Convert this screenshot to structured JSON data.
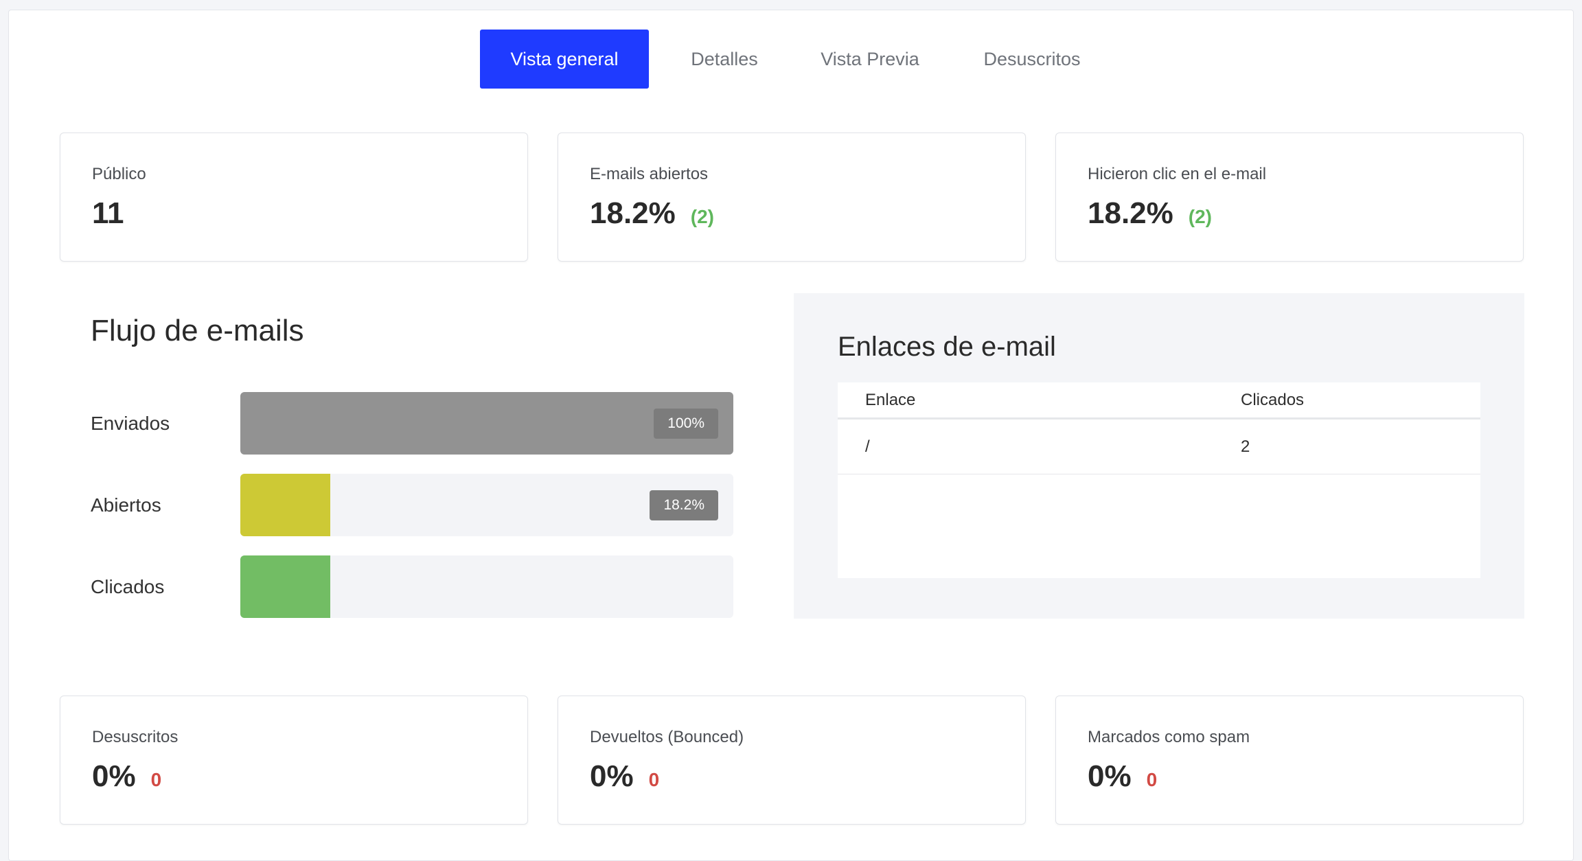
{
  "tabs": [
    {
      "label": "Vista general",
      "active": true
    },
    {
      "label": "Detalles",
      "active": false
    },
    {
      "label": "Vista Previa",
      "active": false
    },
    {
      "label": "Desuscritos",
      "active": false
    }
  ],
  "top_cards": [
    {
      "label": "Público",
      "value": "11",
      "sub": ""
    },
    {
      "label": "E-mails abiertos",
      "value": "18.2%",
      "sub": "(2)"
    },
    {
      "label": "Hicieron clic en el e-mail",
      "value": "18.2%",
      "sub": "(2)"
    }
  ],
  "flow": {
    "title": "Flujo de e-mails",
    "rows": [
      {
        "label": "Enviados",
        "fill_fraction": 1.0,
        "badge": "100%",
        "color": "#929292"
      },
      {
        "label": "Abiertos",
        "fill_fraction": 0.182,
        "badge": "18.2%",
        "color": "#cdc935"
      },
      {
        "label": "Clicados",
        "fill_fraction": 0.182,
        "badge": "",
        "color": "#72bd64"
      }
    ]
  },
  "links": {
    "title": "Enlaces de e-mail",
    "headers": [
      "Enlace",
      "Clicados"
    ],
    "rows": [
      {
        "link": "/",
        "clicks": "2"
      }
    ]
  },
  "bottom_cards": [
    {
      "label": "Desuscritos",
      "value": "0%",
      "sub": "0"
    },
    {
      "label": "Devueltos (Bounced)",
      "value": "0%",
      "sub": "0"
    },
    {
      "label": "Marcados como spam",
      "value": "0%",
      "sub": "0"
    }
  ],
  "colors": {
    "accent": "#1f3bff",
    "positive": "#5fb75c",
    "negative": "#d24a44"
  }
}
